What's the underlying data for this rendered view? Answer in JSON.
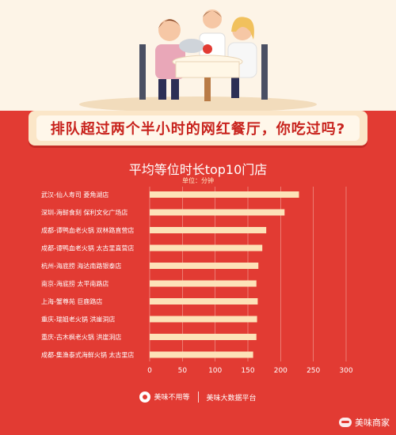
{
  "banner": {
    "headline": "排队超过两个半小时的网红餐厅，你吃过吗?"
  },
  "chart_data": {
    "type": "bar",
    "orientation": "horizontal",
    "title": "平均等位时长top10门店",
    "unit_label": "单位：分钟",
    "categories": [
      "武汉-仙人寿司 菱角湖店",
      "深圳-海鲜食刻 保利文化广场店",
      "成都-谭鸭血老火锅 双林路直营店",
      "成都-谭鸭血老火锅 太古里直营店",
      "杭州-海底捞 海达南路银泰店",
      "南京-海底捞 太平南路店",
      "上海-蟹尊苑 巨鹿路店",
      "重庆-瑞姐老火锅 洪崖洞店",
      "重庆-古木枫老火锅 洪崖洞店",
      "成都-集渔泰式海鲜火锅 太古里店"
    ],
    "values": [
      228,
      206,
      178,
      172,
      166,
      163,
      165,
      164,
      163,
      158
    ],
    "xlim": [
      0,
      300
    ],
    "xticks": [
      0,
      50,
      100,
      150,
      200,
      250,
      300
    ],
    "bar_color": "#fde2b8",
    "grid": true
  },
  "footer": {
    "brand_left": "美味不用等",
    "brand_right": "美味大数据平台"
  },
  "watermark": {
    "text": "美味商家"
  },
  "colors": {
    "background": "#e23b33",
    "banner_text": "#c8231d",
    "bar": "#fde2b8"
  }
}
